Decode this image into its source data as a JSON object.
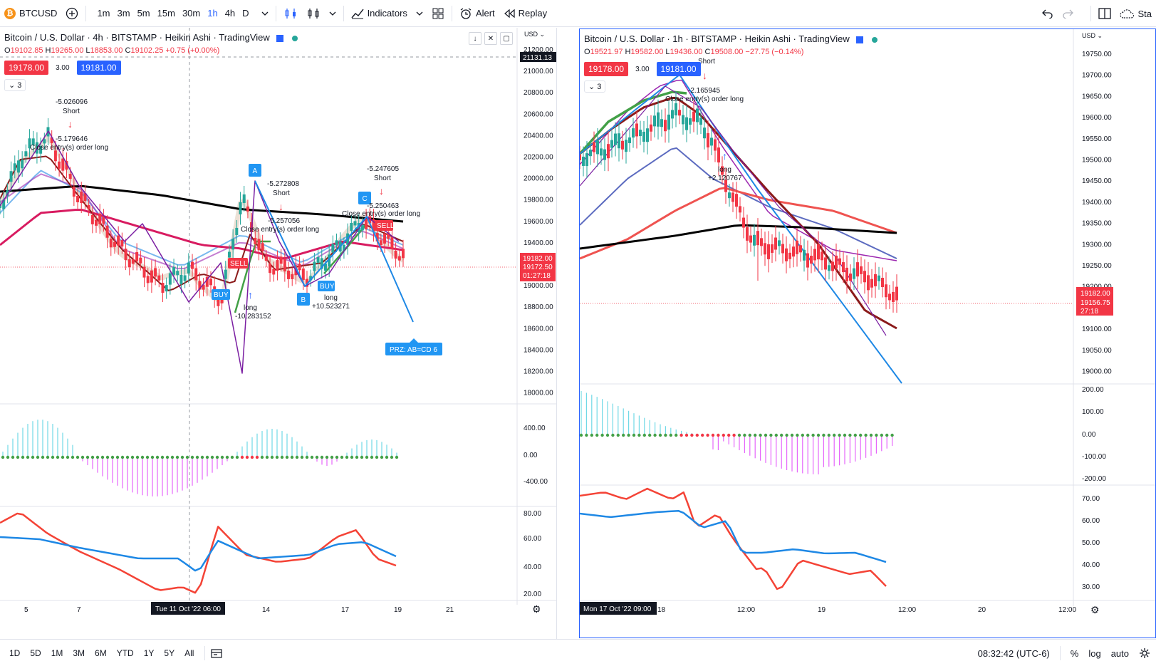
{
  "toolbar": {
    "symbol": "BTCUSD",
    "symbol_icon": "bitcoin-icon",
    "timeframes": [
      "1m",
      "3m",
      "5m",
      "15m",
      "30m",
      "1h",
      "4h",
      "D"
    ],
    "active_timeframe": "1h",
    "indicators_label": "Indicators",
    "alert_label": "Alert",
    "replay_label": "Replay",
    "publish_label": "Sta"
  },
  "colors": {
    "accent": "#2962ff",
    "up": "#26a69a",
    "down": "#f23645",
    "green_line": "#43a047",
    "maroon_line": "#8b1a1a",
    "purple_line": "#9c27b0",
    "blue_line": "#1e88e5",
    "black_line": "#000000",
    "crimson_line": "#d81b60"
  },
  "left": {
    "title": "Bitcoin / U.S. Dollar · 4h · BITSTAMP · Heikin Ashi · TradingView",
    "ohlc": {
      "o": "19102.85",
      "h": "19265.00",
      "l": "18853.00",
      "c": "19102.25",
      "chg": "+0.75 (+0.00%)"
    },
    "sell_price": "19178.00",
    "spread": "3.00",
    "buy_price": "19181.00",
    "collapse_label": "3",
    "currency": "USD",
    "price_axis": [
      "21200.00",
      "21000.00",
      "20800.00",
      "20600.00",
      "20400.00",
      "20200.00",
      "20000.00",
      "19800.00",
      "19600.00",
      "19400.00",
      "19200.00",
      "19000.00",
      "18800.00",
      "18600.00",
      "18400.00",
      "18200.00",
      "18000.00"
    ],
    "crosshair_price": "21131.13",
    "last_price": "19182.00",
    "mark_price": "19172.50",
    "countdown": "01:27:18",
    "osc_axis": [
      "400.00",
      "0.00",
      "-400.00"
    ],
    "rsi_axis": [
      "80.00",
      "60.00",
      "40.00",
      "20.00"
    ],
    "time_axis": [
      "5",
      "7",
      "14",
      "17",
      "19",
      "21"
    ],
    "crosshair_time": "Tue 11 Oct '22   06:00",
    "annotations": {
      "a1_value": "-5.026096",
      "a1_label": "Short",
      "a2_value": "-5.179646",
      "a2_label": "Close entry(s) order long",
      "a3_value": "-5.272808",
      "a3_label": "Short",
      "a4_value": "-5.257056",
      "a4_label": "Close entry(s) order long",
      "a5_value": "-5.247605",
      "a5_label": "Short",
      "a6_value": "-5.250463",
      "a6_label": "Close entry(s) order long",
      "long1_label": "long",
      "long1_value": "-10.283152",
      "long2_label": "long",
      "long2_value": "+10.523271",
      "buy_tag": "BUY",
      "sell_tag": "SELL",
      "sell_tag2": "SELL",
      "buy_tag2": "BUY",
      "pt_a": "A",
      "pt_b": "B",
      "pt_c": "C",
      "prz": "PRZ: AB=CD 6"
    }
  },
  "right": {
    "title": "Bitcoin / U.S. Dollar · 1h · BITSTAMP · Heikin Ashi · TradingView",
    "ohlc": {
      "o": "19521.97",
      "h": "19582.00",
      "l": "19436.00",
      "c": "19508.00",
      "chg": "−27.75 (−0.14%)"
    },
    "sell_price": "19178.00",
    "spread": "3.00",
    "buy_price": "19181.00",
    "collapse_label": "3",
    "currency": "USD",
    "price_axis": [
      "19750.00",
      "19700.00",
      "19650.00",
      "19600.00",
      "19550.00",
      "19500.00",
      "19450.00",
      "19400.00",
      "19350.00",
      "19300.00",
      "19250.00",
      "19200.00",
      "19150.00",
      "19100.00",
      "19050.00",
      "19000.00"
    ],
    "last_price": "19182.00",
    "mark_price": "19156.75",
    "countdown": "27:18",
    "osc_axis": [
      "200.00",
      "100.00",
      "0.00",
      "-100.00",
      "-200.00"
    ],
    "rsi_axis": [
      "70.00",
      "60.00",
      "50.00",
      "40.00",
      "30.00"
    ],
    "time_axis": [
      "18",
      "12:00",
      "19",
      "12:00",
      "20",
      "12:00"
    ],
    "crosshair_time": "Mon 17 Oct '22   09:00",
    "annotations": {
      "b1_label": "Short",
      "b2_value": "-2.165945",
      "b2_label": "Close entry(s) order long",
      "long_label": "long",
      "long_value": "+2.120767"
    }
  },
  "bottom": {
    "ranges": [
      "1D",
      "5D",
      "1M",
      "3M",
      "6M",
      "YTD",
      "1Y",
      "5Y",
      "All"
    ],
    "clock": "08:32:42 (UTC-6)",
    "percent_label": "%",
    "log_label": "log",
    "auto_label": "auto"
  }
}
